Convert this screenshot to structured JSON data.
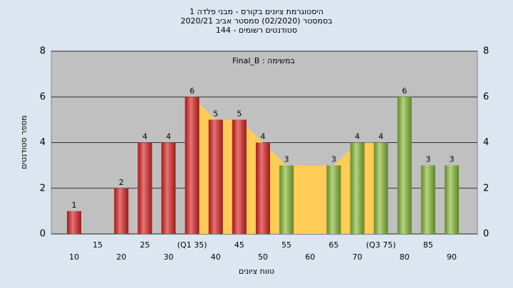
{
  "chart_data": {
    "type": "bar",
    "title": [
      "היסטוגרמת ציונים בקורס - מבני פלדה 1",
      "בסמסטר (02/2020) סמסטר אביב 2020/21",
      "סטודנטים רשומים - 144"
    ],
    "annotation": "Final_B : במשימה",
    "x_label": "טווח ציונים",
    "y_label": "מספר סטודנטים",
    "categories": [
      "10",
      "15",
      "20",
      "25",
      "30",
      "(Q1 35)",
      "40",
      "45",
      "50",
      "55",
      "60",
      "65",
      "70",
      "(Q3 75)",
      "80",
      "85",
      "90"
    ],
    "values": [
      1,
      0,
      2,
      4,
      4,
      6,
      5,
      5,
      4,
      3,
      0,
      3,
      4,
      4,
      6,
      3,
      3
    ],
    "colors": [
      "#e02828",
      "#e02828",
      "#e02828",
      "#e02828",
      "#e02828",
      "#e02828",
      "#e02828",
      "#e02828",
      "#e02828",
      "#8cc03c",
      "#8cc03c",
      "#8cc03c",
      "#8cc03c",
      "#8cc03c",
      "#8cc03c",
      "#8cc03c",
      "#8cc03c"
    ],
    "area": {
      "color": "#ffcc55",
      "values": [
        null,
        null,
        null,
        null,
        null,
        6,
        5,
        5,
        4,
        3,
        3,
        3,
        4,
        4,
        null,
        null,
        null
      ]
    },
    "ylim": [
      0,
      8
    ],
    "yticks": [
      0,
      2,
      4,
      6,
      8
    ],
    "grid": true
  }
}
